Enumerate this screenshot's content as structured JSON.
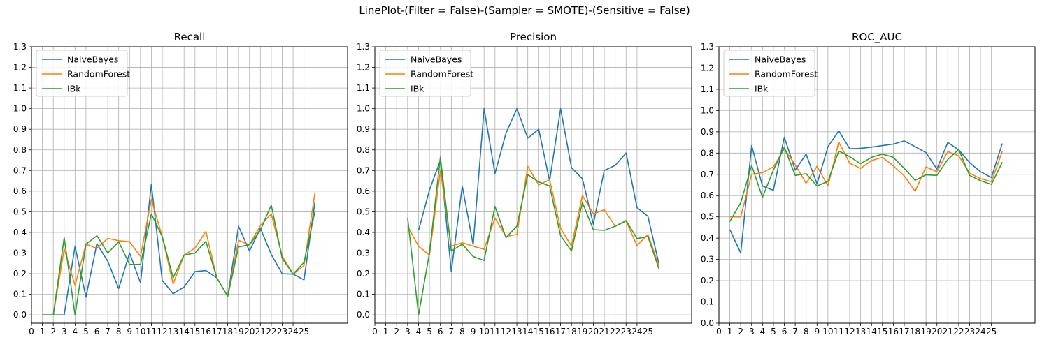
{
  "figure_title": "LinePlot-(Filter = False)-(Sampler = SMOTE)-(Sensitive = False)",
  "colors": {
    "NaiveBayes": "#1f77b4",
    "RandomForest": "#ff7f0e",
    "IBk": "#2ca02c",
    "grid": "#b0b0b0"
  },
  "chart_data": [
    {
      "type": "line",
      "title": "Recall",
      "xlim": [
        0,
        29
      ],
      "ylim": [
        -0.04,
        1.3
      ],
      "grid": true,
      "legend": "top-left",
      "x_ticks": [
        "0",
        "1",
        "2",
        "3",
        "4",
        "5",
        "6",
        "7",
        "8",
        "9",
        "10",
        "11",
        "12",
        "13",
        "14",
        "15",
        "16",
        "17",
        "18",
        "19",
        "20",
        "21",
        "22",
        "23",
        "24",
        "25"
      ],
      "y_ticks": [
        "0.0",
        "0.1",
        "0.2",
        "0.3",
        "0.4",
        "0.5",
        "0.6",
        "0.7",
        "0.8",
        "0.9",
        "1.0",
        "1.1",
        "1.2",
        "1.3"
      ],
      "x": [
        1,
        2,
        3,
        4,
        5,
        6,
        7,
        8,
        9,
        10,
        11,
        12,
        13,
        14,
        15,
        16,
        17,
        18,
        19,
        20,
        21,
        22,
        23,
        24,
        25,
        26
      ],
      "series": [
        {
          "name": "NaiveBayes",
          "values": [
            0.0,
            0.0,
            0.0,
            0.333,
            0.086,
            0.345,
            0.26,
            0.128,
            0.3,
            0.156,
            0.633,
            0.167,
            0.103,
            0.135,
            0.21,
            0.215,
            0.18,
            0.09,
            0.43,
            0.31,
            0.42,
            0.293,
            0.2,
            0.198,
            0.17,
            0.545
          ]
        },
        {
          "name": "RandomForest",
          "values": [
            0.0,
            0.0,
            0.32,
            0.143,
            0.343,
            0.323,
            0.371,
            0.36,
            0.355,
            0.283,
            0.56,
            0.38,
            0.15,
            0.29,
            0.324,
            0.405,
            0.18,
            0.09,
            0.362,
            0.34,
            0.433,
            0.49,
            0.285,
            0.198,
            0.239,
            0.59
          ]
        },
        {
          "name": "IBk",
          "values": [
            0.0,
            0.0,
            0.375,
            0.0,
            0.343,
            0.384,
            0.3,
            0.355,
            0.245,
            0.245,
            0.49,
            0.38,
            0.18,
            0.29,
            0.3,
            0.357,
            0.18,
            0.09,
            0.33,
            0.34,
            0.41,
            0.533,
            0.274,
            0.198,
            0.255,
            0.5
          ]
        }
      ]
    },
    {
      "type": "line",
      "title": "Precision",
      "xlim": [
        0,
        29
      ],
      "ylim": [
        -0.04,
        1.3
      ],
      "grid": true,
      "legend": "top-left",
      "x_ticks": [
        "0",
        "1",
        "2",
        "3",
        "4",
        "5",
        "6",
        "7",
        "8",
        "9",
        "10",
        "11",
        "12",
        "13",
        "14",
        "15",
        "16",
        "17",
        "18",
        "19",
        "20",
        "21",
        "22",
        "23",
        "24",
        "25"
      ],
      "y_ticks": [
        "0.0",
        "0.1",
        "0.2",
        "0.3",
        "0.4",
        "0.5",
        "0.6",
        "0.7",
        "0.8",
        "0.9",
        "1.0",
        "1.1",
        "1.2",
        "1.3"
      ],
      "x": [
        3,
        4,
        5,
        6,
        7,
        8,
        9,
        10,
        11,
        12,
        13,
        14,
        15,
        16,
        17,
        18,
        19,
        20,
        21,
        22,
        23,
        24,
        25,
        26
      ],
      "series": [
        {
          "name": "NaiveBayes",
          "values": [
            null,
            0.41,
            0.605,
            0.75,
            0.21,
            0.625,
            0.34,
            1.0,
            0.685,
            0.88,
            1.0,
            0.857,
            0.9,
            0.65,
            1.0,
            0.714,
            0.66,
            0.44,
            0.7,
            0.725,
            0.785,
            0.52,
            0.478,
            0.25
          ]
        },
        {
          "name": "RandomForest",
          "values": [
            0.43,
            0.333,
            0.29,
            0.7,
            0.333,
            0.35,
            0.333,
            0.318,
            0.47,
            0.38,
            0.39,
            0.72,
            0.63,
            0.655,
            0.42,
            0.333,
            0.58,
            0.49,
            0.51,
            0.43,
            0.455,
            0.336,
            0.39,
            0.24
          ]
        },
        {
          "name": "IBk",
          "values": [
            0.47,
            0.0,
            0.3,
            0.765,
            0.31,
            0.343,
            0.283,
            0.264,
            0.526,
            0.375,
            0.43,
            0.68,
            0.645,
            0.625,
            0.385,
            0.31,
            0.545,
            0.413,
            0.41,
            0.43,
            0.457,
            0.37,
            0.38,
            0.225
          ]
        }
      ]
    },
    {
      "type": "line",
      "title": "ROC_AUC",
      "xlim": [
        0,
        29
      ],
      "ylim": [
        0,
        1.3
      ],
      "grid": true,
      "legend": "top-left",
      "x_ticks": [
        "0",
        "1",
        "2",
        "3",
        "4",
        "5",
        "6",
        "7",
        "8",
        "9",
        "10",
        "11",
        "12",
        "13",
        "14",
        "15",
        "16",
        "17",
        "18",
        "19",
        "20",
        "21",
        "22",
        "23",
        "24",
        "25"
      ],
      "y_ticks": [
        "0.0",
        "0.1",
        "0.2",
        "0.3",
        "0.4",
        "0.5",
        "0.6",
        "0.7",
        "0.8",
        "0.9",
        "1.0",
        "1.1",
        "1.2",
        "1.3"
      ],
      "x": [
        1,
        2,
        3,
        4,
        5,
        6,
        7,
        8,
        9,
        10,
        11,
        12,
        13,
        14,
        15,
        16,
        17,
        18,
        19,
        20,
        21,
        22,
        23,
        24,
        25,
        26
      ],
      "series": [
        {
          "name": "NaiveBayes",
          "values": [
            0.44,
            0.33,
            0.835,
            0.645,
            0.625,
            0.875,
            0.72,
            0.795,
            0.655,
            0.83,
            0.905,
            0.82,
            0.822,
            0.828,
            0.835,
            0.842,
            0.857,
            0.83,
            0.802,
            0.725,
            0.85,
            0.815,
            0.755,
            0.712,
            0.685,
            0.845
          ]
        },
        {
          "name": "RandomForest",
          "values": [
            0.5,
            0.5,
            0.7,
            0.708,
            0.735,
            0.82,
            0.745,
            0.658,
            0.738,
            0.645,
            0.852,
            0.752,
            0.728,
            0.765,
            0.78,
            0.74,
            0.693,
            0.62,
            0.735,
            0.712,
            0.807,
            0.787,
            0.705,
            0.68,
            0.665,
            0.808
          ]
        },
        {
          "name": "IBk",
          "values": [
            0.478,
            0.567,
            0.742,
            0.592,
            0.72,
            0.828,
            0.695,
            0.703,
            0.645,
            0.667,
            0.81,
            0.783,
            0.75,
            0.78,
            0.795,
            0.78,
            0.728,
            0.672,
            0.698,
            0.695,
            0.77,
            0.817,
            0.695,
            0.67,
            0.653,
            0.757
          ]
        }
      ]
    }
  ]
}
